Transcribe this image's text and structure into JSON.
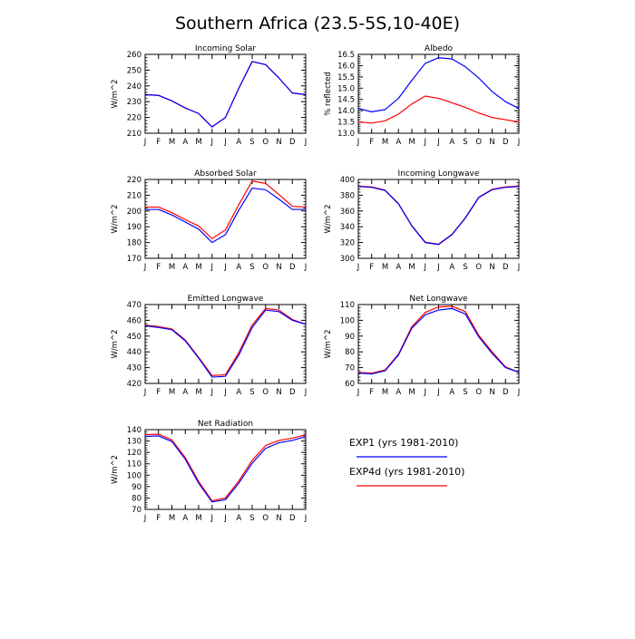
{
  "figure_title": "Southern Africa (23.5-5S,10-40E)",
  "colors": {
    "EXP1": "#0000ff",
    "EXP4d": "#ff0000",
    "axis": "#000000"
  },
  "legend": {
    "entries": [
      {
        "label": "EXP1 (yrs 1981-2010)",
        "color": "#0000ff"
      },
      {
        "label": "EXP4d (yrs 1981-2010)",
        "color": "#ff0000"
      }
    ]
  },
  "chart_data": [
    {
      "type": "line",
      "title": "Incoming Solar",
      "ylabel": "W/m^2",
      "xlabel": "",
      "categories": [
        "J",
        "F",
        "M",
        "A",
        "M",
        "J",
        "J",
        "A",
        "S",
        "O",
        "N",
        "D",
        "J"
      ],
      "ylim": [
        210,
        260
      ],
      "yticks": [
        210,
        220,
        230,
        240,
        250,
        260
      ],
      "ytick_labels": [
        "210",
        "220",
        "230",
        "240",
        "250",
        "260"
      ],
      "series": [
        {
          "name": "EXP1",
          "values": [
            234.5,
            234,
            230.5,
            226,
            222.5,
            214,
            220,
            238.5,
            255.5,
            253.5,
            245,
            235.5,
            234.5
          ]
        },
        {
          "name": "EXP4d",
          "values": [
            234.5,
            234,
            230.5,
            226,
            222.5,
            214,
            220,
            238.5,
            255.5,
            253.5,
            245,
            235.5,
            234.5
          ]
        }
      ]
    },
    {
      "type": "line",
      "title": "Albedo",
      "ylabel": "% reflected",
      "xlabel": "",
      "categories": [
        "J",
        "F",
        "M",
        "A",
        "M",
        "J",
        "J",
        "A",
        "S",
        "O",
        "N",
        "D",
        "J"
      ],
      "ylim": [
        13,
        16.5
      ],
      "yticks": [
        13,
        13.5,
        14,
        14.5,
        15,
        15.5,
        16,
        16.5
      ],
      "ytick_labels": [
        "13.0",
        "13.5",
        "14.0",
        "14.5",
        "15.0",
        "15.5",
        "16.0",
        "16.5"
      ],
      "series": [
        {
          "name": "EXP1",
          "values": [
            14.1,
            13.95,
            14.05,
            14.55,
            15.35,
            16.1,
            16.35,
            16.3,
            15.95,
            15.45,
            14.85,
            14.4,
            14.1
          ]
        },
        {
          "name": "EXP4d",
          "values": [
            13.5,
            13.45,
            13.55,
            13.85,
            14.3,
            14.65,
            14.55,
            14.35,
            14.15,
            13.9,
            13.7,
            13.6,
            13.5
          ]
        }
      ]
    },
    {
      "type": "line",
      "title": "Absorbed Solar",
      "ylabel": "W/m^2",
      "xlabel": "",
      "categories": [
        "J",
        "F",
        "M",
        "A",
        "M",
        "J",
        "J",
        "A",
        "S",
        "O",
        "N",
        "D",
        "J"
      ],
      "ylim": [
        170,
        220
      ],
      "yticks": [
        170,
        180,
        190,
        200,
        210,
        220
      ],
      "ytick_labels": [
        "170",
        "180",
        "190",
        "200",
        "210",
        "220"
      ],
      "series": [
        {
          "name": "EXP1",
          "values": [
            201,
            201,
            197.5,
            193,
            188.5,
            180,
            185,
            200.5,
            214.5,
            213.5,
            207.5,
            201,
            201
          ]
        },
        {
          "name": "EXP4d",
          "values": [
            202.5,
            202.5,
            199,
            194.5,
            190.5,
            182.5,
            188,
            204,
            219,
            217.5,
            210.5,
            203,
            202.5
          ]
        }
      ]
    },
    {
      "type": "line",
      "title": "Incoming Longwave",
      "ylabel": "W/m^2",
      "xlabel": "",
      "categories": [
        "J",
        "F",
        "M",
        "A",
        "M",
        "J",
        "J",
        "A",
        "S",
        "O",
        "N",
        "D",
        "J"
      ],
      "ylim": [
        300,
        400
      ],
      "yticks": [
        300,
        320,
        340,
        360,
        380,
        400
      ],
      "ytick_labels": [
        "300",
        "320",
        "340",
        "360",
        "380",
        "400"
      ],
      "series": [
        {
          "name": "EXP1",
          "values": [
            391,
            390,
            386,
            369,
            341,
            320,
            317.5,
            330,
            351,
            377,
            387,
            390,
            391
          ]
        },
        {
          "name": "EXP4d",
          "values": [
            391.5,
            390.5,
            386.5,
            369.5,
            341.5,
            320.5,
            318,
            330.5,
            351.5,
            377.5,
            387.5,
            390.5,
            391.5
          ]
        }
      ]
    },
    {
      "type": "line",
      "title": "Emitted Longwave",
      "ylabel": "W/m^2",
      "xlabel": "",
      "categories": [
        "J",
        "F",
        "M",
        "A",
        "M",
        "J",
        "J",
        "A",
        "S",
        "O",
        "N",
        "D",
        "J"
      ],
      "ylim": [
        420,
        470
      ],
      "yticks": [
        420,
        430,
        440,
        450,
        460,
        470
      ],
      "ytick_labels": [
        "420",
        "430",
        "440",
        "450",
        "460",
        "470"
      ],
      "series": [
        {
          "name": "EXP1",
          "values": [
            456.5,
            455.5,
            454,
            447,
            436,
            424,
            424.5,
            438,
            455.5,
            466.5,
            465.5,
            460,
            457.5
          ]
        },
        {
          "name": "EXP4d",
          "values": [
            457,
            456,
            454.5,
            447.5,
            436.5,
            425,
            425.5,
            439.5,
            457,
            467.5,
            466.5,
            460.5,
            457.5
          ]
        }
      ]
    },
    {
      "type": "line",
      "title": "Net Longwave",
      "ylabel": "W/m^2",
      "xlabel": "",
      "categories": [
        "J",
        "F",
        "M",
        "A",
        "M",
        "J",
        "J",
        "A",
        "S",
        "O",
        "N",
        "D",
        "J"
      ],
      "ylim": [
        60,
        110
      ],
      "yticks": [
        60,
        70,
        80,
        90,
        100,
        110
      ],
      "ytick_labels": [
        "60",
        "70",
        "80",
        "90",
        "100",
        "110"
      ],
      "series": [
        {
          "name": "EXP1",
          "values": [
            66.5,
            66,
            68,
            78,
            95,
            103.5,
            106.5,
            107.5,
            104,
            89.5,
            79,
            70,
            67
          ]
        },
        {
          "name": "EXP4d",
          "values": [
            67,
            66.5,
            68.5,
            78.5,
            96,
            105,
            108.5,
            109,
            105.5,
            90.5,
            80,
            70.5,
            67
          ]
        }
      ]
    },
    {
      "type": "line",
      "title": "Net Radiation",
      "ylabel": "W/m^2",
      "xlabel": "",
      "categories": [
        "J",
        "F",
        "M",
        "A",
        "M",
        "J",
        "J",
        "A",
        "S",
        "O",
        "N",
        "D",
        "J"
      ],
      "ylim": [
        70,
        140
      ],
      "yticks": [
        70,
        80,
        90,
        100,
        110,
        120,
        130,
        140
      ],
      "ytick_labels": [
        "70",
        "80",
        "90",
        "100",
        "110",
        "120",
        "130",
        "140"
      ],
      "series": [
        {
          "name": "EXP1",
          "values": [
            134,
            134.5,
            129.5,
            114,
            93,
            76.5,
            78.5,
            93,
            110.5,
            123.5,
            128.5,
            130.5,
            134
          ]
        },
        {
          "name": "EXP4d",
          "values": [
            135.5,
            136,
            131,
            115.5,
            94.5,
            77.5,
            80,
            95,
            113,
            126,
            130.5,
            132.5,
            135.5
          ]
        }
      ]
    }
  ]
}
